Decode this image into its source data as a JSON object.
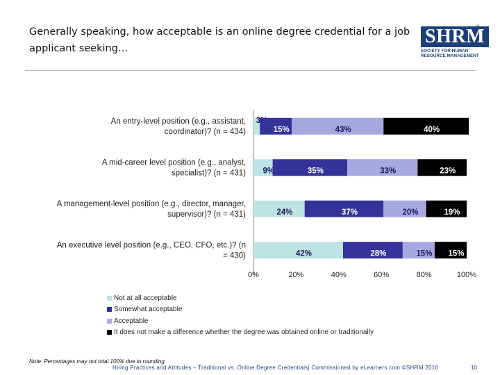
{
  "header": {
    "title": "Generally speaking, how acceptable is an online degree credential for a job applicant seeking…"
  },
  "logo": {
    "mark": "SHRM",
    "reg": "®",
    "line1": "SOCIETY FOR HUMAN",
    "line2": "RESOURCE MANAGEMENT"
  },
  "chart_data": {
    "type": "bar",
    "orientation": "horizontal",
    "stacked": true,
    "percent_stacked": true,
    "categories": [
      "An entry-level position (e.g., assistant, coordinator)? (n = 434)",
      "A mid-career level position (e.g., analyst, specialist)? (n = 431)",
      "A management-level position (e.g., director, manager, supervisor)? (n = 431)",
      "An executive level position (e.g., CEO, CFO, etc.)? (n = 430)"
    ],
    "series": [
      {
        "name": "Not at all acceptable",
        "values": [
          3,
          9,
          24,
          42
        ],
        "color": "#bde3e3",
        "label_color": "#1a1a5e"
      },
      {
        "name": "Somewhat acceptable",
        "values": [
          15,
          35,
          37,
          28
        ],
        "color": "#33339a",
        "label_color": "#ffffff"
      },
      {
        "name": "Acceptable",
        "values": [
          43,
          33,
          20,
          15
        ],
        "color": "#a8a8e0",
        "label_color": "#1a1a5e"
      },
      {
        "name": "It does not make a difference whether the degree was obtained online or traditionally",
        "values": [
          40,
          23,
          19,
          15
        ],
        "color": "#000000",
        "label_color": "#ffffff"
      }
    ],
    "data_labels": [
      [
        "3%",
        "15%",
        "43%",
        "40%"
      ],
      [
        "9%",
        "35%",
        "33%",
        "23%"
      ],
      [
        "24%",
        "37%",
        "20%",
        "19%"
      ],
      [
        "42%",
        "28%",
        "15%",
        "15%"
      ]
    ],
    "xlim": [
      0,
      100
    ],
    "xticks": [
      "0%",
      "20%",
      "40%",
      "60%",
      "80%",
      "100%"
    ],
    "grid": false,
    "legend_position": "bottom-left"
  },
  "note": "Note: Percentages may not total 100% due to rounding.",
  "footer": {
    "text": "Hiring Practices and Attitudes – Traditional vs. Online Degree Credentials| Commissioned by eLearners.com ©SHRM 2010",
    "page": "10"
  }
}
